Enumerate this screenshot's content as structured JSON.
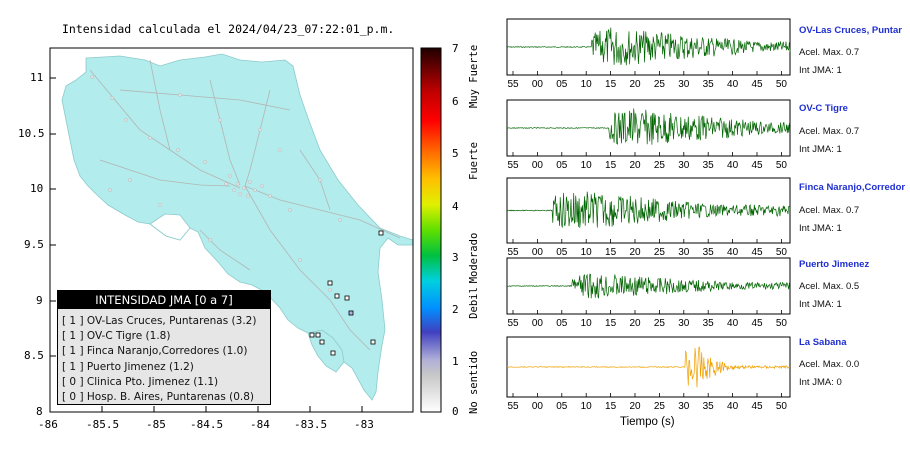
{
  "map": {
    "title": "Intensidad calculada el 2024/04/23_07:22:01_p.m.",
    "x_ticks": [
      "-86",
      "-85.5",
      "-85",
      "-84.5",
      "-84",
      "-83.5",
      "-83"
    ],
    "y_ticks": [
      "11",
      "10.5",
      "10",
      "9.5",
      "9",
      "8.5",
      "8"
    ],
    "land_color": "#b2ecec",
    "sea_color": "#ffffff"
  },
  "legend": {
    "title": "INTENSIDAD JMA [0 a 7]",
    "entries": [
      "[ 1 ] OV-Las Cruces, Puntarenas (3.2)",
      "[ 1 ] OV-C Tigre (1.8)",
      "[ 1 ] Finca Naranjo,Corredores (1.0)",
      "[ 1 ] Puerto Jimenez (1.2)",
      "[ 0 ] Clinica Pto. Jimenez (1.1)",
      "[ 0 ] Hosp. B. Aires, Puntarenas (0.8)"
    ]
  },
  "colorbar": {
    "ticks": [
      "7",
      "6",
      "5",
      "4",
      "3",
      "2",
      "1",
      "0"
    ],
    "labels": [
      "Muy Fuerte",
      "Fuerte",
      "Moderado",
      "Debil",
      "No sentido"
    ]
  },
  "waveforms": {
    "xlabel": "Tiempo (s)",
    "ticks": [
      "55",
      "00",
      "05",
      "10",
      "15",
      "20",
      "25",
      "30",
      "35",
      "40",
      "45",
      "50"
    ],
    "stations": [
      {
        "name": "OV-Las Cruces, Puntar",
        "acel": "Acel. Max. 0.7",
        "int": "Int JMA: 1",
        "color": "#006400"
      },
      {
        "name": "OV-C Tigre",
        "acel": "Acel. Max. 0.7",
        "int": "Int JMA: 1",
        "color": "#006400"
      },
      {
        "name": "Finca Naranjo,Corredor",
        "acel": "Acel. Max. 0.7",
        "int": "Int JMA: 1",
        "color": "#006400"
      },
      {
        "name": "Puerto Jimenez",
        "acel": "Acel. Max. 0.5",
        "int": "Int JMA: 1",
        "color": "#006400"
      },
      {
        "name": "La Sabana",
        "acel": "Acel. Max. 0.0",
        "int": "Int JMA: 0",
        "color": "#f0a000"
      }
    ]
  }
}
